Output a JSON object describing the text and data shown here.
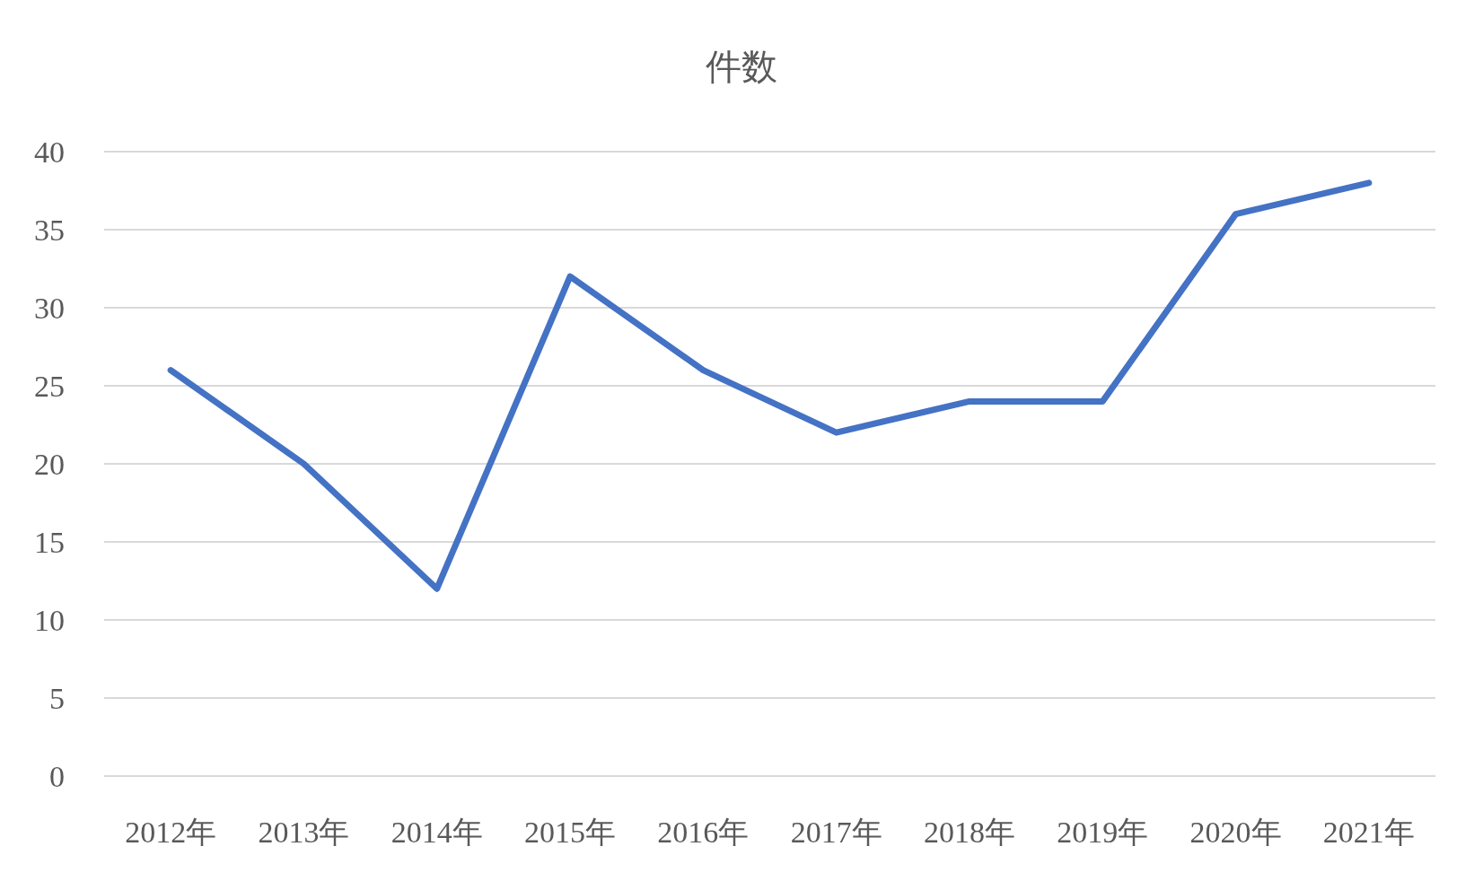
{
  "chart_data": {
    "type": "line",
    "title": "件数",
    "categories": [
      "2012年",
      "2013年",
      "2014年",
      "2015年",
      "2016年",
      "2017年",
      "2018年",
      "2019年",
      "2020年",
      "2021年"
    ],
    "series": [
      {
        "color": "#4472c4",
        "values": [
          26,
          20,
          12,
          32,
          26,
          22,
          24,
          24,
          36,
          38
        ]
      }
    ],
    "ylim": [
      0,
      40
    ],
    "yticks": [
      0,
      5,
      10,
      15,
      20,
      25,
      30,
      35,
      40
    ],
    "grid": "y"
  }
}
